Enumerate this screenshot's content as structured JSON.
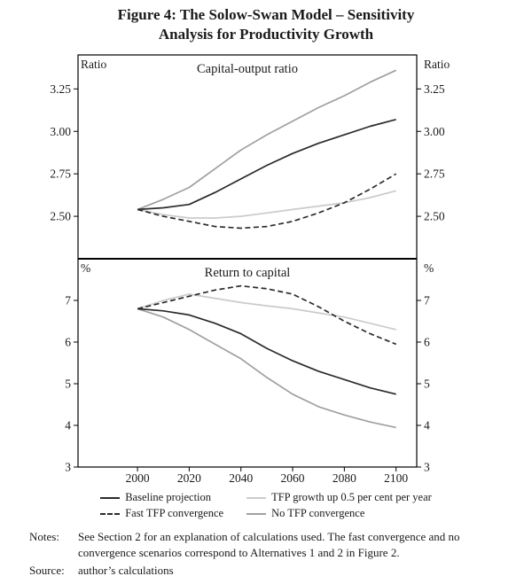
{
  "figure": {
    "title_line1": "Figure 4: The Solow-Swan Model – Sensitivity",
    "title_line2": "Analysis for Productivity Growth"
  },
  "chart_data": {
    "type": "line",
    "x": [
      2000,
      2010,
      2020,
      2030,
      2040,
      2050,
      2060,
      2070,
      2080,
      2090,
      2100
    ],
    "xlim": [
      1977,
      2108
    ],
    "x_tick_values": [
      2000,
      2020,
      2040,
      2060,
      2080,
      2100
    ],
    "x_tick_labels": [
      "2000",
      "2020",
      "2040",
      "2060",
      "2080",
      "2100"
    ],
    "panels": [
      {
        "id": "capital-output-ratio",
        "title": "Capital-output ratio",
        "unit_left": "Ratio",
        "unit_right": "Ratio",
        "ylim": [
          2.25,
          3.45
        ],
        "ytick_values": [
          2.5,
          2.75,
          3.0,
          3.25
        ],
        "ytick_labels": [
          "2.50",
          "2.75",
          "3.00",
          "3.25"
        ],
        "series": [
          {
            "name": "TFP growth up 0.5 per cent per year",
            "color": "#cbcbcb",
            "dash": "solid",
            "values": [
              2.54,
              2.51,
              2.49,
              2.49,
              2.5,
              2.52,
              2.54,
              2.56,
              2.58,
              2.61,
              2.65
            ]
          },
          {
            "name": "No TFP convergence",
            "color": "#a0a0a0",
            "dash": "solid",
            "values": [
              2.54,
              2.6,
              2.67,
              2.78,
              2.89,
              2.98,
              3.06,
              3.14,
              3.21,
              3.29,
              3.36
            ]
          },
          {
            "name": "Fast TFP convergence",
            "color": "#2b2b2b",
            "dash": "dashed",
            "values": [
              2.54,
              2.5,
              2.47,
              2.44,
              2.43,
              2.44,
              2.47,
              2.52,
              2.58,
              2.66,
              2.75
            ]
          },
          {
            "name": "Baseline projection",
            "color": "#2b2b2b",
            "dash": "solid",
            "values": [
              2.54,
              2.55,
              2.57,
              2.64,
              2.72,
              2.8,
              2.87,
              2.93,
              2.98,
              3.03,
              3.07
            ]
          }
        ]
      },
      {
        "id": "return-to-capital",
        "title": "Return to capital",
        "unit_left": "%",
        "unit_right": "%",
        "ylim": [
          3,
          8
        ],
        "ytick_values": [
          3,
          4,
          5,
          6,
          7
        ],
        "ytick_labels": [
          "3",
          "4",
          "5",
          "6",
          "7"
        ],
        "series": [
          {
            "name": "TFP growth up 0.5 per cent per year",
            "color": "#cbcbcb",
            "dash": "solid",
            "values": [
              6.8,
              7.0,
              7.15,
              7.05,
              6.95,
              6.87,
              6.8,
              6.7,
              6.6,
              6.45,
              6.3
            ]
          },
          {
            "name": "No TFP convergence",
            "color": "#a0a0a0",
            "dash": "solid",
            "values": [
              6.8,
              6.6,
              6.3,
              5.95,
              5.6,
              5.15,
              4.75,
              4.45,
              4.25,
              4.08,
              3.95
            ]
          },
          {
            "name": "Fast TFP convergence",
            "color": "#2b2b2b",
            "dash": "dashed",
            "values": [
              6.8,
              6.95,
              7.1,
              7.25,
              7.35,
              7.28,
              7.15,
              6.85,
              6.5,
              6.2,
              5.95
            ]
          },
          {
            "name": "Baseline projection",
            "color": "#2b2b2b",
            "dash": "solid",
            "values": [
              6.8,
              6.75,
              6.65,
              6.45,
              6.2,
              5.85,
              5.55,
              5.3,
              5.1,
              4.9,
              4.75
            ]
          }
        ]
      }
    ]
  },
  "legend": {
    "items": [
      {
        "label": "Baseline projection",
        "color": "#2b2b2b",
        "dash": "solid"
      },
      {
        "label": "TFP growth up 0.5 per cent per year",
        "color": "#cbcbcb",
        "dash": "solid"
      },
      {
        "label": "Fast TFP convergence",
        "color": "#2b2b2b",
        "dash": "dashed"
      },
      {
        "label": "No TFP convergence",
        "color": "#a0a0a0",
        "dash": "solid"
      }
    ]
  },
  "notes": {
    "notes_label": "Notes:",
    "notes_text": "See Section 2 for an explanation of calculations used. The fast convergence and no convergence scenarios correspond to Alternatives 1 and 2 in Figure 2.",
    "source_label": "Source:",
    "source_text": "author’s calculations"
  }
}
